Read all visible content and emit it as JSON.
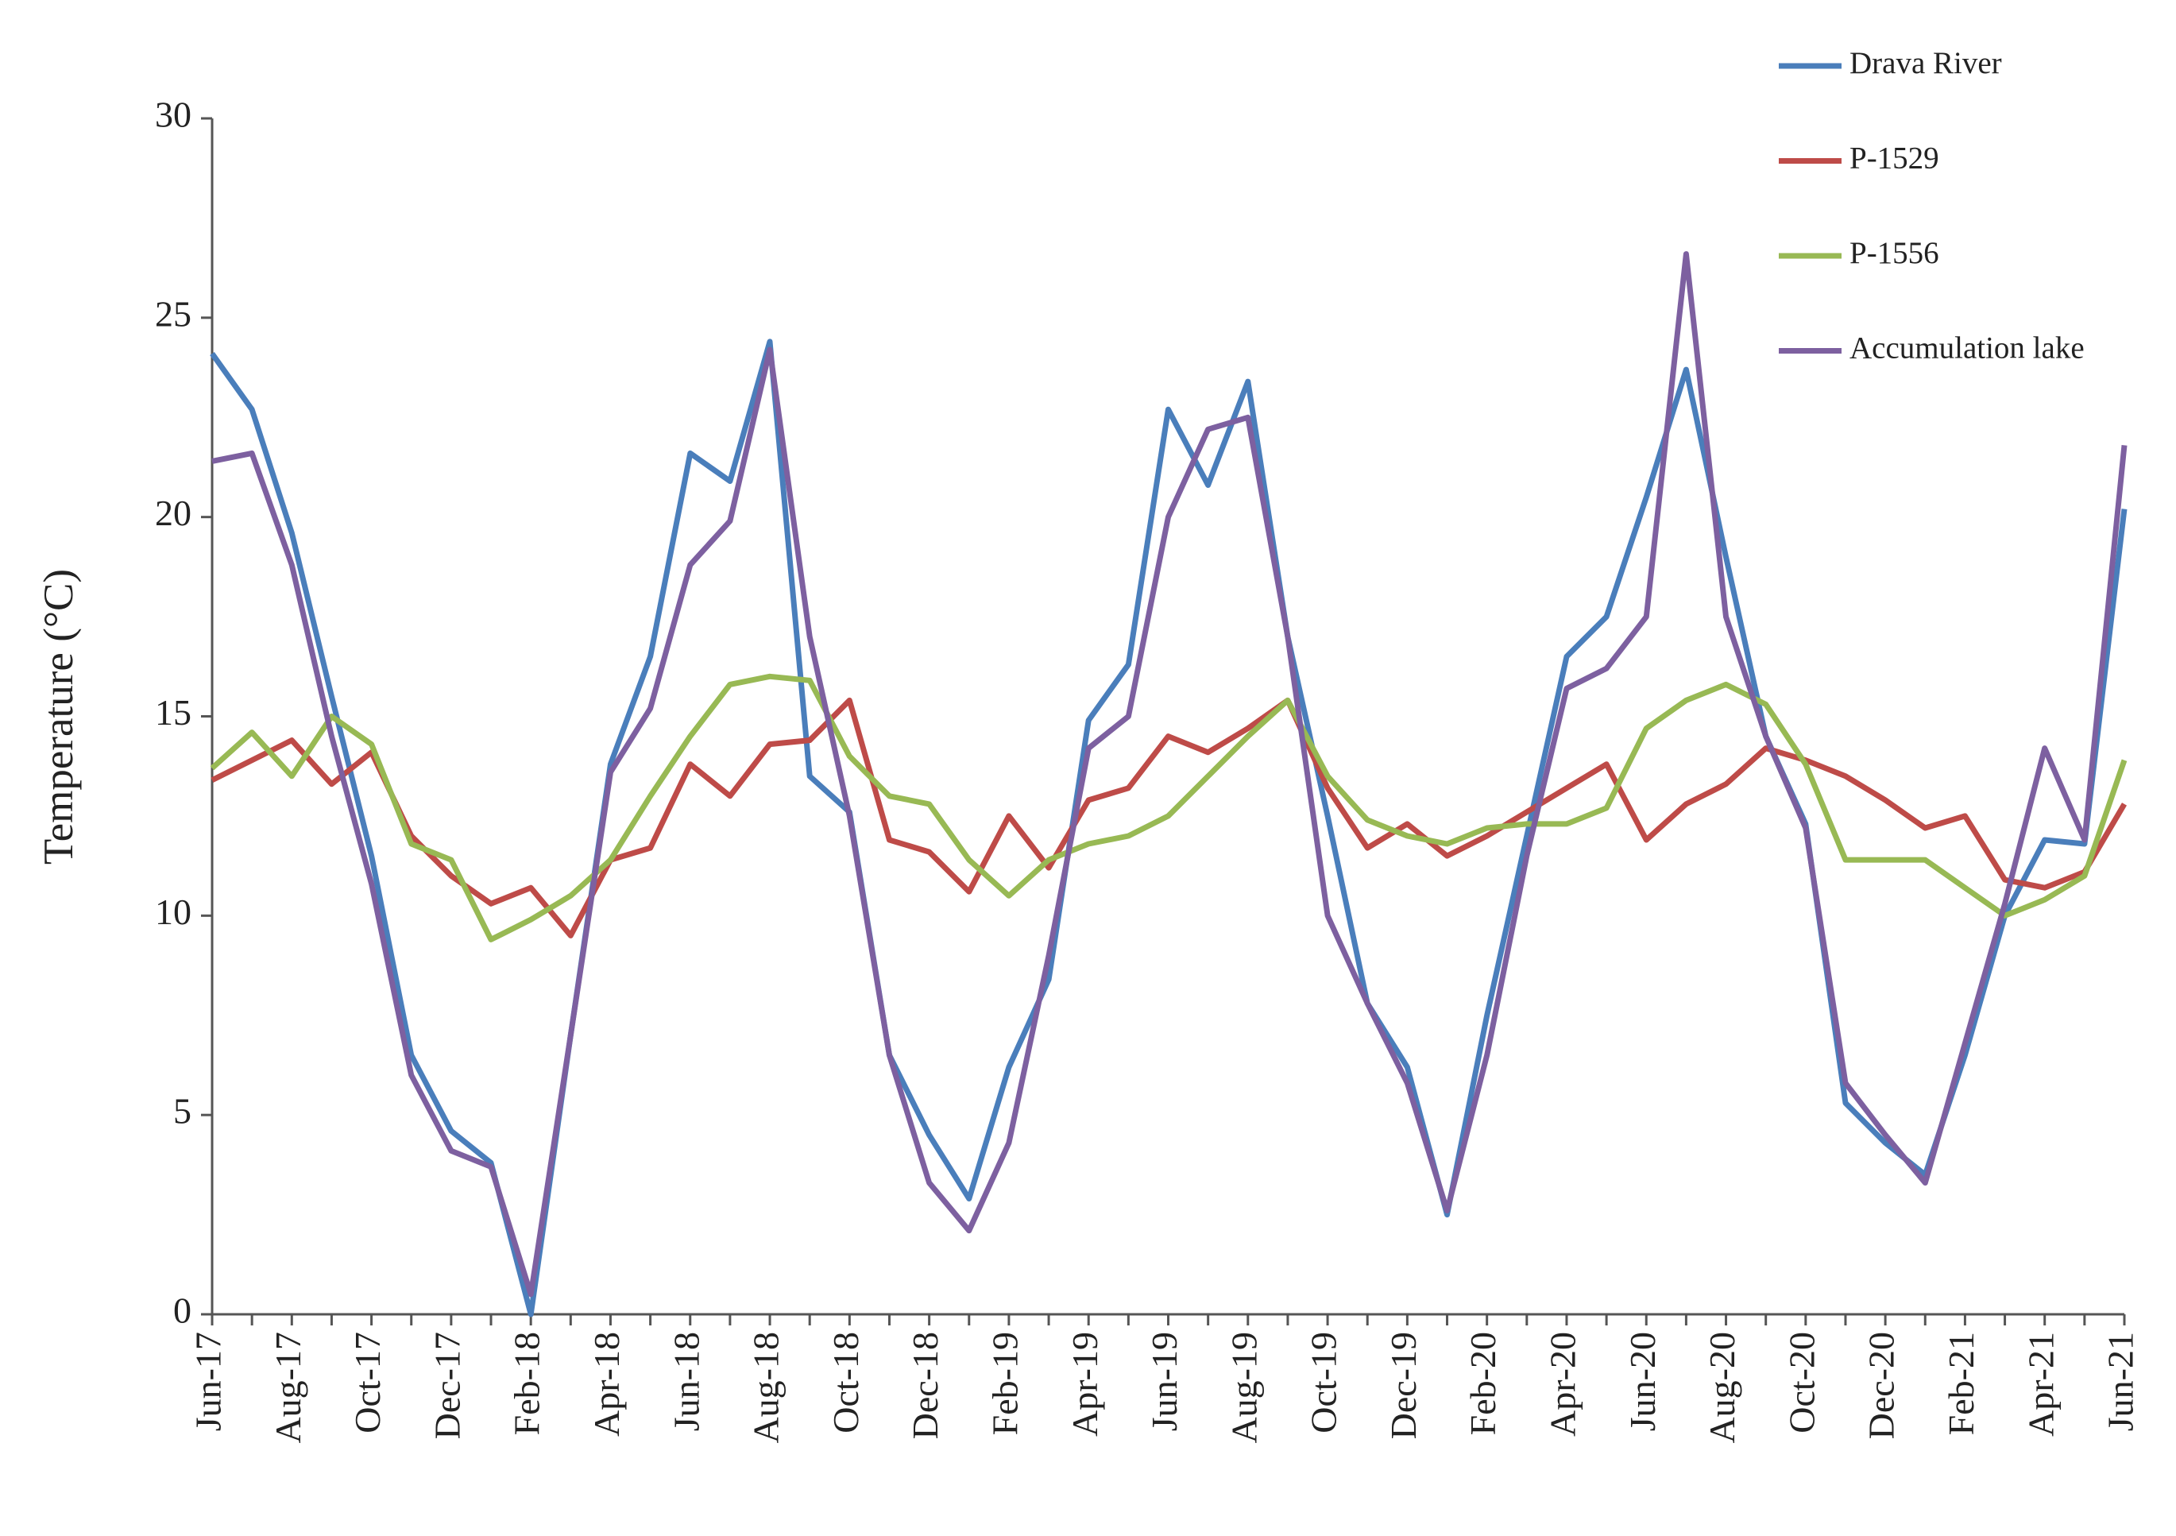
{
  "chart_data": {
    "type": "line",
    "y_label": "Temperature (°C)",
    "categories": [
      "Jun-17",
      null,
      "Aug-17",
      null,
      "Oct-17",
      null,
      "Dec-17",
      null,
      "Feb-18",
      null,
      "Apr-18",
      null,
      "Jun-18",
      null,
      "Aug-18",
      null,
      "Oct-18",
      null,
      "Dec-18",
      null,
      "Feb-19",
      null,
      "Apr-19",
      null,
      "Jun-19",
      null,
      "Aug-19",
      null,
      "Oct-19",
      null,
      "Dec-19",
      null,
      "Feb-20",
      null,
      "Apr-20",
      null,
      "Jun-20",
      null,
      "Aug-20",
      null,
      "Oct-20",
      null,
      "Dec-20",
      null,
      "Feb-21",
      null,
      "Apr-21",
      null,
      "Jun-21"
    ],
    "series": [
      {
        "name": "Drava River",
        "color": "#4a7ebb",
        "values": [
          24.1,
          22.7,
          19.6,
          15.5,
          11.5,
          6.5,
          4.6,
          3.8,
          0,
          7.0,
          13.8,
          16.5,
          21.6,
          20.9,
          24.4,
          13.5,
          12.6,
          6.5,
          4.5,
          2.9,
          6.2,
          8.4,
          14.9,
          16.3,
          22.7,
          20.8,
          23.4,
          17.0,
          12.5,
          7.8,
          6.2,
          2.5,
          7.5,
          12.0,
          16.5,
          17.5,
          20.5,
          23.7,
          19.0,
          14.5,
          12.3,
          5.3,
          4.3,
          3.5,
          6.5,
          10.0,
          11.9,
          11.8,
          20.2
        ]
      },
      {
        "name": "P-1529",
        "color": "#be4b48",
        "values": [
          13.4,
          13.9,
          14.4,
          13.3,
          14.1,
          12.0,
          11.0,
          10.3,
          10.7,
          9.5,
          11.4,
          11.7,
          13.8,
          13.0,
          14.3,
          14.4,
          15.4,
          11.9,
          11.6,
          10.6,
          12.5,
          11.2,
          12.9,
          13.2,
          14.5,
          14.1,
          14.7,
          15.4,
          13.2,
          11.7,
          12.3,
          11.5,
          12.0,
          12.6,
          13.2,
          13.8,
          11.9,
          12.8,
          13.3,
          14.2,
          13.9,
          13.5,
          12.9,
          12.2,
          12.5,
          10.9,
          10.7,
          11.1,
          12.8
        ]
      },
      {
        "name": "P-1556",
        "color": "#98b954",
        "values": [
          13.7,
          14.6,
          13.5,
          15.0,
          14.3,
          11.8,
          11.4,
          9.4,
          9.9,
          10.5,
          11.4,
          13.0,
          14.5,
          15.8,
          16.0,
          15.9,
          14.0,
          13.0,
          12.8,
          11.4,
          10.5,
          11.4,
          11.8,
          12.0,
          12.5,
          13.5,
          14.5,
          15.4,
          13.5,
          12.4,
          12.0,
          11.8,
          12.2,
          12.3,
          12.3,
          12.7,
          14.7,
          15.4,
          15.8,
          15.3,
          13.8,
          11.4,
          11.4,
          11.4,
          10.7,
          10.0,
          10.4,
          11.0,
          13.9
        ]
      },
      {
        "name": "Accumulation lake",
        "color": "#7d60a0",
        "values": [
          21.4,
          21.6,
          18.8,
          14.5,
          10.8,
          6.0,
          4.1,
          3.7,
          0.5,
          7.0,
          13.6,
          15.2,
          18.8,
          19.9,
          24.2,
          17.0,
          12.5,
          6.5,
          3.3,
          2.1,
          4.3,
          9.0,
          14.2,
          15.0,
          20.0,
          22.2,
          22.5,
          17.0,
          10.0,
          7.8,
          5.8,
          2.6,
          6.5,
          11.5,
          15.7,
          16.2,
          17.5,
          26.6,
          17.5,
          14.5,
          12.2,
          5.8,
          4.5,
          3.3,
          6.8,
          10.3,
          14.2,
          11.9,
          21.8
        ]
      }
    ],
    "ylim": [
      0,
      30
    ],
    "yticks": [
      0,
      5,
      10,
      15,
      20,
      25,
      30
    ],
    "grid": false,
    "legend": "top-right"
  }
}
